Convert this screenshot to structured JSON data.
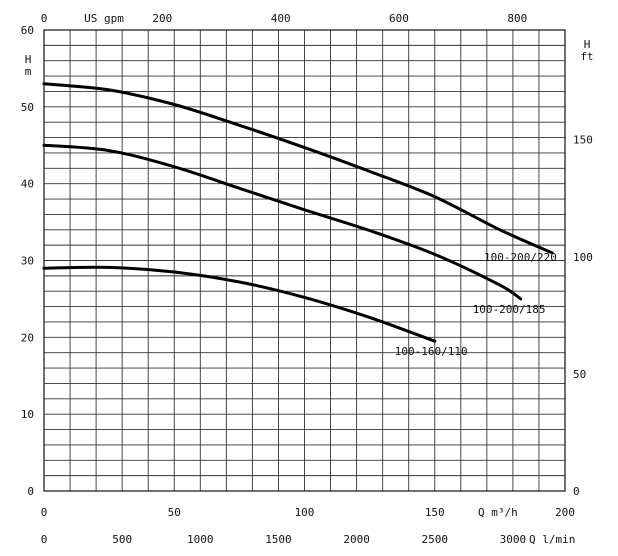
{
  "chart_data": {
    "type": "line",
    "title": "",
    "x_primary": {
      "unit_label": "Q m³/h",
      "range": [
        0,
        200
      ],
      "ticks": [
        "0",
        "50",
        "100",
        "150",
        "200"
      ]
    },
    "x_secondary": {
      "unit_label": "Q l/min",
      "ticks": [
        "0",
        "500",
        "1000",
        "1500",
        "2000",
        "2500",
        "3000"
      ]
    },
    "x_top": {
      "unit_label": "US gpm",
      "ticks": [
        "0",
        "200",
        "400",
        "600",
        "800"
      ]
    },
    "y_left": {
      "unit_top": "H",
      "unit_bottom": "m",
      "range": [
        0,
        60
      ],
      "ticks": [
        "0",
        "10",
        "20",
        "30",
        "40",
        "50",
        "60"
      ]
    },
    "y_right": {
      "unit_top": "H",
      "unit_bottom": "ft",
      "range": [
        0,
        196.85
      ],
      "ticks": [
        "0",
        "50",
        "100",
        "150"
      ]
    },
    "grid": true,
    "series": [
      {
        "name": "100-200/220",
        "x": [
          0,
          25,
          50,
          75,
          100,
          125,
          150,
          175,
          195
        ],
        "y": [
          53,
          52.2,
          50.3,
          47.6,
          44.7,
          41.6,
          38.3,
          34.0,
          31.0
        ]
      },
      {
        "name": "100-200/185",
        "x": [
          0,
          25,
          50,
          75,
          100,
          125,
          150,
          175,
          183
        ],
        "y": [
          45,
          44.3,
          42.2,
          39.4,
          36.6,
          33.9,
          30.8,
          26.8,
          25.0
        ]
      },
      {
        "name": "100-160/110",
        "x": [
          0,
          25,
          50,
          75,
          100,
          125,
          150
        ],
        "y": [
          29,
          29.1,
          28.5,
          27.2,
          25.2,
          22.6,
          19.5
        ]
      }
    ]
  }
}
